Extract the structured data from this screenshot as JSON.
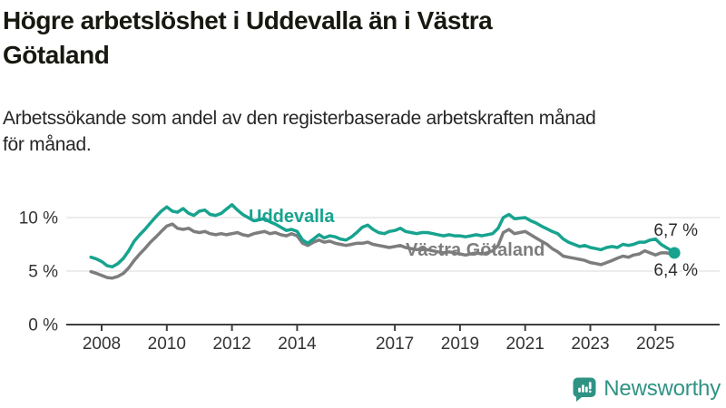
{
  "header": {
    "title_line1": "Högre arbetslöshet i Uddevalla än i Västra",
    "title_line2": "Götaland",
    "subtitle_line1": "Arbetssökande som andel av den registerbaserade arbetskraften månad",
    "subtitle_line2": "för månad."
  },
  "footer": {
    "brand": "Newsworthy",
    "brand_color": "#2f9384",
    "logo_icon": "newsworthy-speech-bubble-barchart-icon"
  },
  "colors": {
    "uddevalla_teal": "#17a38f",
    "vastra_gotaland_gray": "#7d7d7d",
    "gridline": "#d9d9d9",
    "axis": "#3f3f3f",
    "tick_label": "#333333",
    "value_label": "#2b2b2b"
  },
  "chart_data": {
    "type": "line",
    "unit": "%",
    "grid": "horizontal",
    "legend_position": "inline-labels",
    "x_axis": {
      "ticks": [
        2008,
        2010,
        2012,
        2014,
        2017,
        2019,
        2021,
        2023,
        2025
      ],
      "tick_labels": [
        "2008",
        "2010",
        "2012",
        "2014",
        "2017",
        "2019",
        "2021",
        "2023",
        "2025"
      ]
    },
    "y_axis": {
      "ticks": [
        0,
        5,
        10
      ],
      "tick_labels": [
        "0 %",
        "5 %",
        "10 %"
      ],
      "range": [
        0,
        12.5
      ]
    },
    "x": [
      2007.67,
      2007.83,
      2008.0,
      2008.17,
      2008.33,
      2008.5,
      2008.67,
      2008.83,
      2009.0,
      2009.17,
      2009.33,
      2009.5,
      2009.67,
      2009.83,
      2010.0,
      2010.17,
      2010.33,
      2010.5,
      2010.67,
      2010.83,
      2011.0,
      2011.17,
      2011.33,
      2011.5,
      2011.67,
      2011.83,
      2012.0,
      2012.17,
      2012.33,
      2012.5,
      2012.67,
      2012.83,
      2013.0,
      2013.17,
      2013.33,
      2013.5,
      2013.67,
      2013.83,
      2014.0,
      2014.17,
      2014.33,
      2014.5,
      2014.67,
      2014.83,
      2015.0,
      2015.17,
      2015.33,
      2015.5,
      2015.67,
      2015.83,
      2016.0,
      2016.17,
      2016.33,
      2016.5,
      2016.67,
      2016.83,
      2017.0,
      2017.17,
      2017.33,
      2017.5,
      2017.67,
      2017.83,
      2018.0,
      2018.17,
      2018.33,
      2018.5,
      2018.67,
      2018.83,
      2019.0,
      2019.17,
      2019.33,
      2019.5,
      2019.67,
      2019.83,
      2020.0,
      2020.17,
      2020.33,
      2020.5,
      2020.67,
      2020.83,
      2021.0,
      2021.17,
      2021.33,
      2021.5,
      2021.67,
      2021.83,
      2022.0,
      2022.17,
      2022.33,
      2022.5,
      2022.67,
      2022.83,
      2023.0,
      2023.17,
      2023.33,
      2023.5,
      2023.67,
      2023.83,
      2024.0,
      2024.17,
      2024.33,
      2024.5,
      2024.67,
      2024.83,
      2025.0,
      2025.17,
      2025.33,
      2025.5,
      2025.58
    ],
    "series": [
      {
        "name": "Västra Götaland",
        "color": "#7d7d7d",
        "end_label": "6,4 %",
        "end_value": 6.4,
        "end_dot": false,
        "values": [
          4.95,
          4.8,
          4.6,
          4.4,
          4.35,
          4.5,
          4.8,
          5.3,
          6.0,
          6.6,
          7.1,
          7.7,
          8.2,
          8.7,
          9.2,
          9.4,
          9.0,
          8.9,
          9.0,
          8.7,
          8.6,
          8.7,
          8.5,
          8.4,
          8.5,
          8.4,
          8.5,
          8.6,
          8.4,
          8.3,
          8.5,
          8.6,
          8.7,
          8.5,
          8.6,
          8.4,
          8.3,
          8.5,
          8.3,
          7.6,
          7.4,
          7.7,
          7.9,
          7.7,
          7.8,
          7.6,
          7.5,
          7.4,
          7.5,
          7.6,
          7.6,
          7.7,
          7.5,
          7.4,
          7.3,
          7.2,
          7.3,
          7.4,
          7.2,
          7.1,
          7.0,
          7.1,
          7.0,
          6.9,
          6.8,
          6.7,
          6.8,
          6.7,
          6.6,
          6.5,
          6.6,
          6.7,
          6.6,
          6.7,
          6.9,
          7.4,
          8.6,
          8.9,
          8.5,
          8.6,
          8.7,
          8.4,
          8.1,
          7.8,
          7.5,
          7.1,
          6.8,
          6.4,
          6.3,
          6.2,
          6.1,
          6.0,
          5.8,
          5.7,
          5.6,
          5.8,
          6.0,
          6.2,
          6.4,
          6.3,
          6.5,
          6.6,
          6.9,
          6.7,
          6.5,
          6.7,
          6.7,
          6.6,
          6.4
        ]
      },
      {
        "name": "Uddevalla",
        "color": "#17a38f",
        "end_label": "6,7 %",
        "end_value": 6.7,
        "end_dot": true,
        "values": [
          6.3,
          6.15,
          5.9,
          5.5,
          5.4,
          5.7,
          6.2,
          6.9,
          7.8,
          8.4,
          8.9,
          9.5,
          10.1,
          10.6,
          11.0,
          10.6,
          10.5,
          10.85,
          10.4,
          10.2,
          10.6,
          10.7,
          10.3,
          10.2,
          10.4,
          10.8,
          11.2,
          10.7,
          10.3,
          10.0,
          9.7,
          9.8,
          9.9,
          9.6,
          9.4,
          9.1,
          8.8,
          8.9,
          8.7,
          7.9,
          7.6,
          8.0,
          8.4,
          8.1,
          8.3,
          8.2,
          8.0,
          7.9,
          8.2,
          8.6,
          9.1,
          9.3,
          8.9,
          8.6,
          8.5,
          8.7,
          8.8,
          9.0,
          8.7,
          8.6,
          8.5,
          8.6,
          8.6,
          8.5,
          8.4,
          8.3,
          8.4,
          8.3,
          8.3,
          8.2,
          8.3,
          8.4,
          8.3,
          8.4,
          8.5,
          9.0,
          10.0,
          10.3,
          9.9,
          9.95,
          10.0,
          9.7,
          9.5,
          9.2,
          8.95,
          8.7,
          8.5,
          8.0,
          7.7,
          7.5,
          7.3,
          7.4,
          7.2,
          7.1,
          7.0,
          7.2,
          7.3,
          7.2,
          7.5,
          7.4,
          7.5,
          7.7,
          7.7,
          7.9,
          8.0,
          7.5,
          7.2,
          6.9,
          6.7
        ]
      }
    ]
  }
}
